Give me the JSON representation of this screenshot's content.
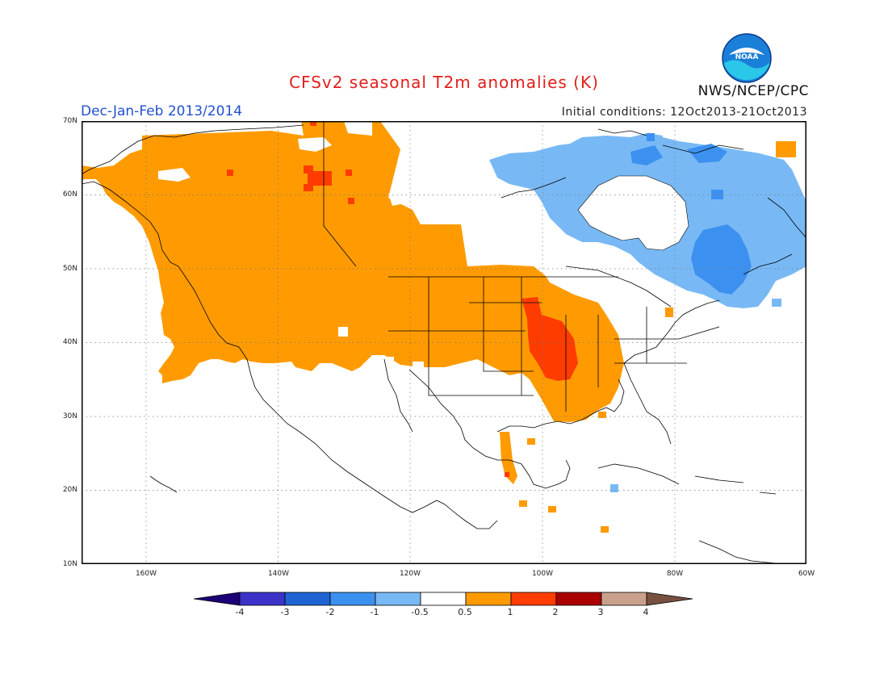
{
  "header": {
    "title": "CFSv2 seasonal T2m anomalies (K)",
    "period": "Dec-Jan-Feb 2013/2014",
    "initial_conditions": "Initial conditions: 12Oct2013-21Oct2013",
    "agency": "NWS/NCEP/CPC",
    "logo_text": "NOAA"
  },
  "map": {
    "projection": "lat-lon",
    "lon_range": [
      -172,
      -60
    ],
    "lat_range": [
      10,
      70
    ],
    "lat_ticks": [
      "70N",
      "60N",
      "50N",
      "40N",
      "30N",
      "20N",
      "10N"
    ],
    "lon_ticks": [
      "160W",
      "140W",
      "120W",
      "100W",
      "80W",
      "60W"
    ],
    "grid": true
  },
  "colorbar": {
    "labels": [
      "-4",
      "-3",
      "-2",
      "-1",
      "-0.5",
      "0.5",
      "1",
      "2",
      "3",
      "4"
    ],
    "colors": [
      "#1c0078",
      "#3c32c8",
      "#1e64d2",
      "#3c91f0",
      "#78b9f5",
      "#ffffff",
      "#ff9b00",
      "#ff3c00",
      "#aa0000",
      "#c8a08c",
      "#785040"
    ]
  }
}
